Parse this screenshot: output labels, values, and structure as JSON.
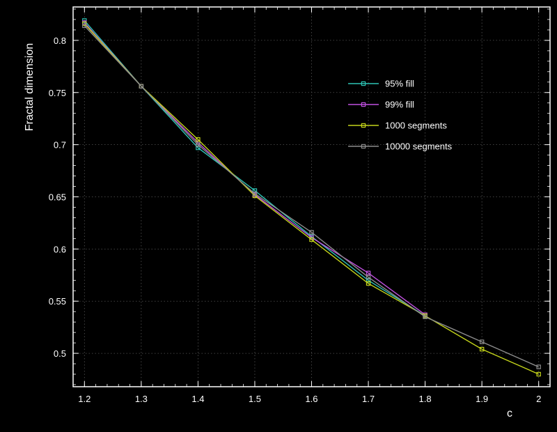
{
  "chart_data": {
    "type": "line",
    "title": "",
    "xlabel": "c",
    "ylabel": "Fractal dimension",
    "xlim": [
      1.18,
      2.02
    ],
    "ylim": [
      0.468,
      0.832
    ],
    "grid": true,
    "legend_position": "top-right",
    "x_ticks": [
      "1.2",
      "1.3",
      "1.4",
      "1.5",
      "1.6",
      "1.7",
      "1.8",
      "1.9",
      "2"
    ],
    "y_ticks": [
      "0.5",
      "0.55",
      "0.6",
      "0.65",
      "0.7",
      "0.75",
      "0.8"
    ],
    "series": [
      {
        "name": "95% fill",
        "color": "#2ec4b6",
        "x": [
          1.2,
          1.3,
          1.4,
          1.5,
          1.6,
          1.7,
          1.8
        ],
        "y": [
          0.819,
          0.756,
          0.697,
          0.656,
          0.612,
          0.57,
          0.536
        ]
      },
      {
        "name": "99% fill",
        "color": "#c050e0",
        "x": [
          1.2,
          1.3,
          1.4,
          1.5,
          1.6,
          1.7,
          1.8
        ],
        "y": [
          0.817,
          0.756,
          0.702,
          0.652,
          0.611,
          0.577,
          0.537
        ]
      },
      {
        "name": "1000 segments",
        "color": "#c4d41a",
        "x": [
          1.2,
          1.3,
          1.4,
          1.5,
          1.6,
          1.7,
          1.8,
          1.9,
          2.0
        ],
        "y": [
          0.816,
          0.756,
          0.705,
          0.651,
          0.609,
          0.567,
          0.536,
          0.504,
          0.48
        ]
      },
      {
        "name": "10000 segments",
        "color": "#8c8c8c",
        "x": [
          1.2,
          1.3,
          1.4,
          1.5,
          1.6,
          1.7,
          1.8,
          1.9,
          2.0
        ],
        "y": [
          0.814,
          0.756,
          0.7,
          0.653,
          0.616,
          0.573,
          0.535,
          0.511,
          0.487
        ]
      }
    ]
  }
}
